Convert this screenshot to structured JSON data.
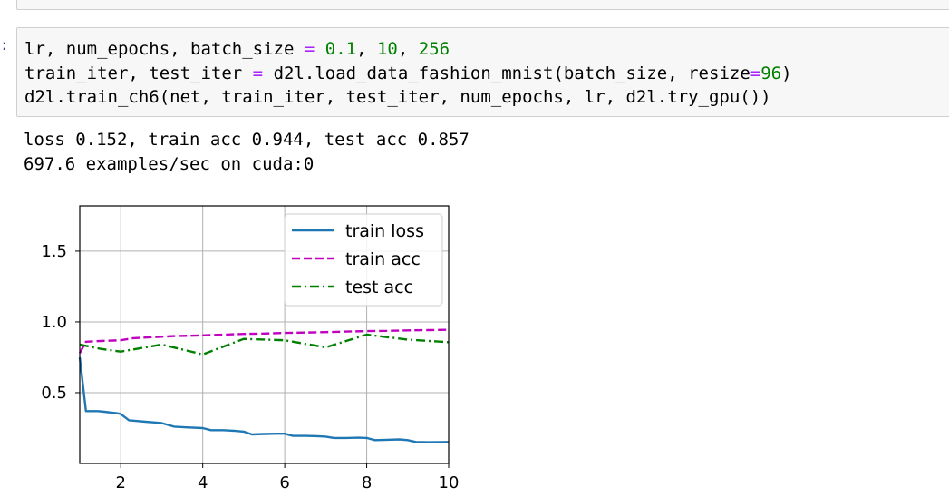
{
  "prompt": ":",
  "code": {
    "line1": [
      {
        "t": "lr, num_epochs, batch_size ",
        "c": ""
      },
      {
        "t": "=",
        "c": "op"
      },
      {
        "t": " ",
        "c": ""
      },
      {
        "t": "0.1",
        "c": "num"
      },
      {
        "t": ", ",
        "c": ""
      },
      {
        "t": "10",
        "c": "num"
      },
      {
        "t": ", ",
        "c": ""
      },
      {
        "t": "256",
        "c": "num"
      }
    ],
    "line2": [
      {
        "t": "train_iter, test_iter ",
        "c": ""
      },
      {
        "t": "=",
        "c": "op"
      },
      {
        "t": " d2l.load_data_fashion_mnist(batch_size, resize",
        "c": ""
      },
      {
        "t": "=",
        "c": "op"
      },
      {
        "t": "96",
        "c": "num"
      },
      {
        "t": ")",
        "c": ""
      }
    ],
    "line3": [
      {
        "t": "d2l.train_ch6(net, train_iter, test_iter, num_epochs, lr, d2l.try_gpu())",
        "c": ""
      }
    ]
  },
  "output": {
    "line1": "loss 0.152, train acc 0.944, test acc 0.857",
    "line2": "697.6 examples/sec on cuda:0"
  },
  "chart_data": {
    "type": "line",
    "xlim": [
      1,
      10
    ],
    "ylim": [
      0,
      1.82
    ],
    "xticks": [
      2,
      4,
      6,
      8,
      10
    ],
    "yticks": [
      0.5,
      1.0,
      1.5
    ],
    "xtick_labels": [
      "2",
      "4",
      "6",
      "8",
      "10"
    ],
    "ytick_labels": [
      "0.5",
      "1.0",
      "1.5"
    ],
    "grid": true,
    "legend_position": "top-right",
    "series": [
      {
        "name": "train loss",
        "color": "#1f77b4",
        "dash": "solid",
        "x": [
          1.0,
          1.15,
          1.3,
          1.45,
          1.6,
          1.75,
          1.9,
          2.0,
          2.2,
          2.4,
          2.6,
          2.8,
          3.0,
          3.3,
          3.6,
          4.0,
          4.2,
          4.5,
          4.8,
          5.0,
          5.2,
          5.5,
          5.8,
          6.0,
          6.2,
          6.5,
          6.8,
          7.0,
          7.2,
          7.5,
          7.8,
          8.0,
          8.2,
          8.5,
          8.8,
          9.0,
          9.2,
          9.5,
          9.8,
          10.0
        ],
        "y": [
          0.75,
          0.37,
          0.37,
          0.37,
          0.365,
          0.36,
          0.355,
          0.35,
          0.305,
          0.3,
          0.295,
          0.29,
          0.285,
          0.26,
          0.255,
          0.25,
          0.235,
          0.235,
          0.23,
          0.225,
          0.205,
          0.208,
          0.21,
          0.21,
          0.195,
          0.195,
          0.193,
          0.19,
          0.18,
          0.18,
          0.182,
          0.18,
          0.165,
          0.167,
          0.17,
          0.165,
          0.152,
          0.15,
          0.151,
          0.152
        ]
      },
      {
        "name": "train acc",
        "color": "#bf00bf",
        "dash": "dashed",
        "x": [
          1.0,
          1.15,
          1.5,
          2.0,
          2.3,
          3.0,
          3.3,
          4.0,
          4.5,
          5.0,
          5.5,
          6.0,
          6.5,
          7.0,
          7.5,
          8.0,
          8.5,
          9.0,
          9.5,
          10.0
        ],
        "y": [
          0.78,
          0.86,
          0.865,
          0.87,
          0.885,
          0.895,
          0.9,
          0.905,
          0.91,
          0.915,
          0.918,
          0.922,
          0.925,
          0.928,
          0.932,
          0.935,
          0.937,
          0.94,
          0.942,
          0.944
        ]
      },
      {
        "name": "test acc",
        "color": "#008000",
        "dash": "dashdot",
        "x": [
          1.0,
          1.5,
          2.0,
          3.0,
          4.0,
          5.0,
          6.0,
          7.0,
          8.0,
          9.0,
          10.0
        ],
        "y": [
          0.84,
          0.81,
          0.79,
          0.84,
          0.77,
          0.88,
          0.87,
          0.82,
          0.91,
          0.875,
          0.857
        ]
      }
    ]
  }
}
